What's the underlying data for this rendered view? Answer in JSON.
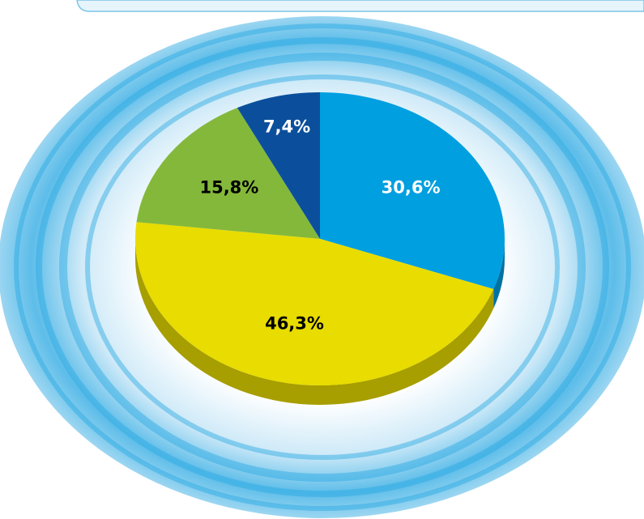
{
  "chart_data": {
    "type": "pie",
    "categories": [
      null,
      null,
      null,
      null
    ],
    "values": [
      30.6,
      46.3,
      15.8,
      7.4
    ],
    "value_labels": [
      "30,6%",
      "46,3%",
      "15,8%",
      "7,4%"
    ],
    "colors": [
      "#009fe0",
      "#e8dc00",
      "#84b83a",
      "#0b4f9c"
    ]
  }
}
